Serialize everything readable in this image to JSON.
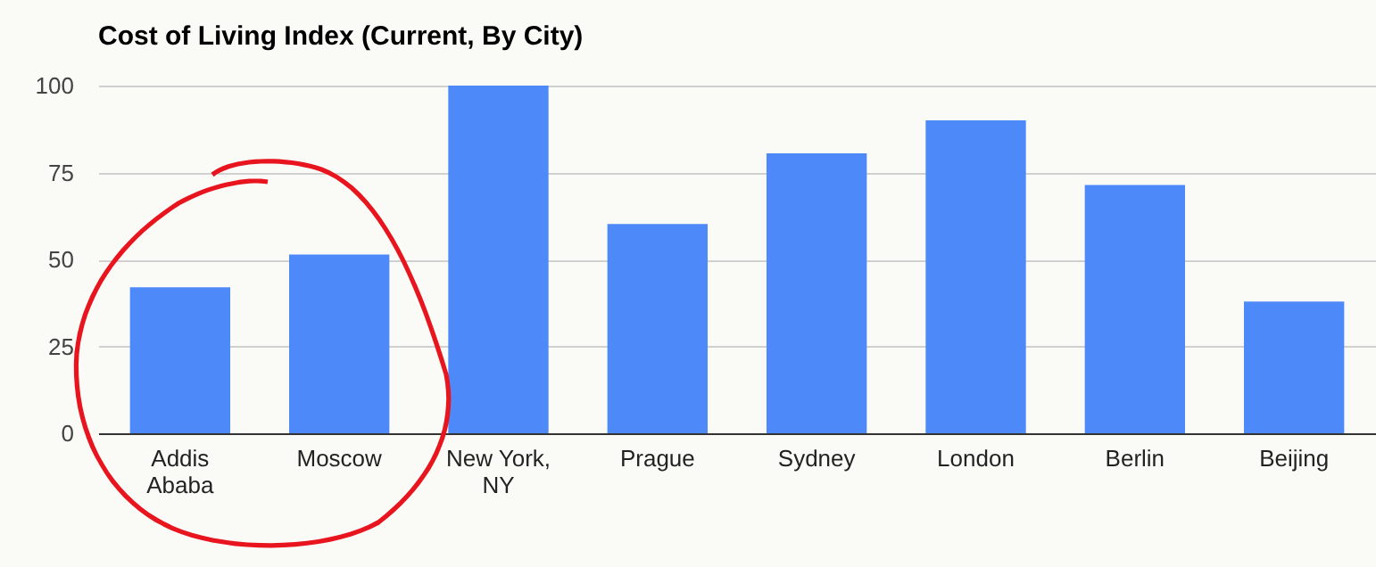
{
  "chart_data": {
    "type": "bar",
    "title": "Cost of Living Index (Current, By City)",
    "categories": [
      "Addis Ababa",
      "Moscow",
      "New York, NY",
      "Prague",
      "Sydney",
      "London",
      "Berlin",
      "Beijing"
    ],
    "values": [
      42,
      51.4,
      100,
      60.2,
      80.5,
      90,
      71.4,
      37.9
    ],
    "color": "#4d89f9",
    "ylim": [
      0,
      100
    ],
    "yticks": [
      0,
      25,
      50,
      75,
      100
    ],
    "grid": "y"
  }
}
